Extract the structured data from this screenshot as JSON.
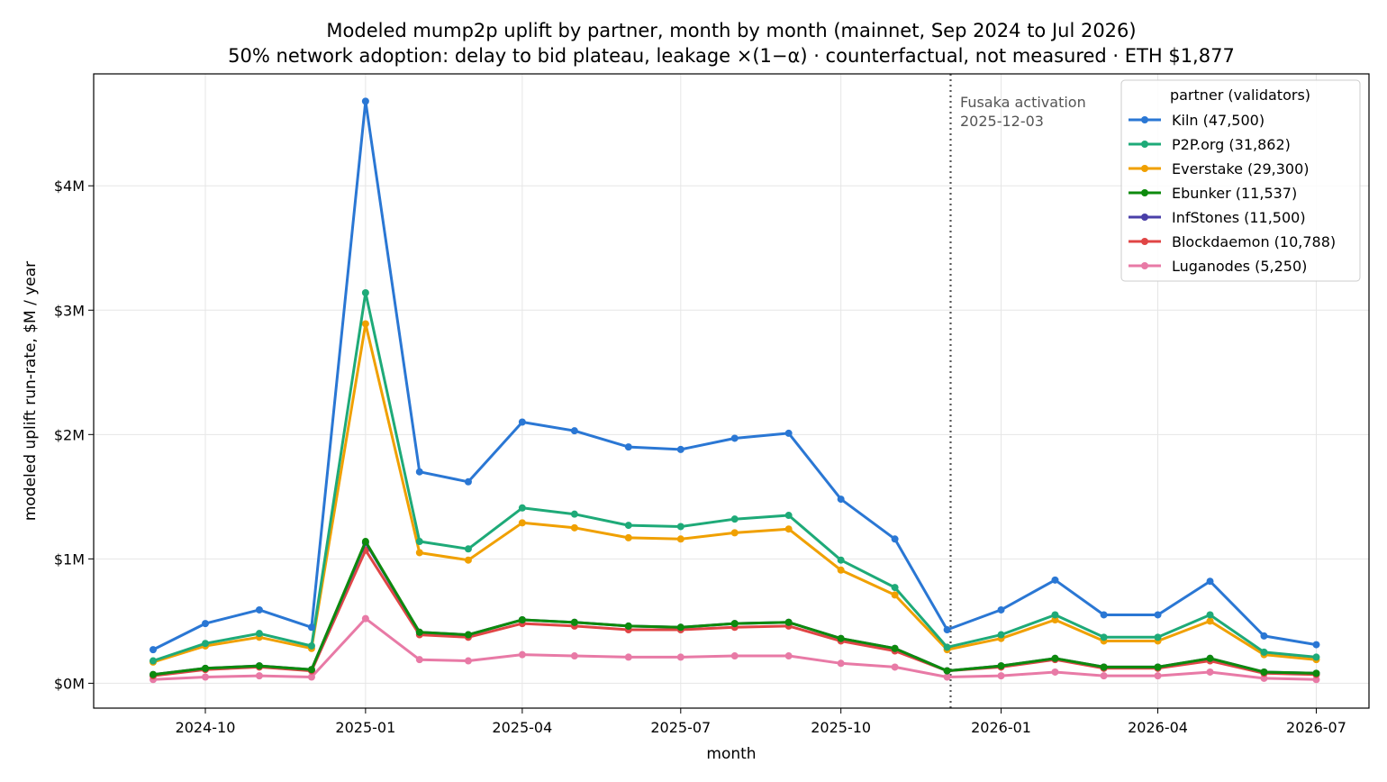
{
  "chart_data": {
    "type": "line",
    "title": "Modeled mump2p uplift by partner, month by month (mainnet, Sep 2024 to Jul 2026)",
    "subtitle": "50% network adoption: delay to bid plateau, leakage ×(1−α) · counterfactual, not measured · ETH $1,877",
    "xlabel": "month",
    "ylabel": "modeled uplift run-rate, $M / year",
    "x": [
      "2024-09",
      "2024-10",
      "2024-11",
      "2024-12",
      "2025-01",
      "2025-02",
      "2025-03",
      "2025-04",
      "2025-05",
      "2025-06",
      "2025-07",
      "2025-08",
      "2025-09",
      "2025-10",
      "2025-11",
      "2025-12",
      "2026-01",
      "2026-02",
      "2026-03",
      "2026-04",
      "2026-05",
      "2026-06",
      "2026-07"
    ],
    "x_ticks": [
      "2024-10",
      "2025-01",
      "2025-04",
      "2025-07",
      "2025-10",
      "2026-01",
      "2026-04",
      "2026-07"
    ],
    "ylim": [
      -0.2,
      4.9
    ],
    "y_ticks": [
      {
        "value": 0,
        "label": "$0M"
      },
      {
        "value": 1,
        "label": "$1M"
      },
      {
        "value": 2,
        "label": "$2M"
      },
      {
        "value": 3,
        "label": "$3M"
      },
      {
        "value": 4,
        "label": "$4M"
      }
    ],
    "grid": true,
    "legend": {
      "title": "partner (validators)",
      "placement": "top-right"
    },
    "annotation": {
      "x": "2025-12-03",
      "lines": [
        "Fusaka activation",
        "2025-12-03"
      ]
    },
    "series": [
      {
        "name": "Kiln (47,500)",
        "color": "#2a77d4",
        "values": [
          0.27,
          0.48,
          0.59,
          0.45,
          4.68,
          1.7,
          1.62,
          2.1,
          2.03,
          1.9,
          1.88,
          1.97,
          2.01,
          1.48,
          1.16,
          0.43,
          0.59,
          0.83,
          0.55,
          0.55,
          0.82,
          0.38,
          0.31
        ]
      },
      {
        "name": "P2P.org (31,862)",
        "color": "#1eaa78",
        "values": [
          0.18,
          0.32,
          0.4,
          0.3,
          3.14,
          1.14,
          1.08,
          1.41,
          1.36,
          1.27,
          1.26,
          1.32,
          1.35,
          0.99,
          0.77,
          0.29,
          0.39,
          0.55,
          0.37,
          0.37,
          0.55,
          0.25,
          0.21
        ]
      },
      {
        "name": "Everstake (29,300)",
        "color": "#f0a000",
        "values": [
          0.17,
          0.3,
          0.37,
          0.28,
          2.89,
          1.05,
          0.99,
          1.29,
          1.25,
          1.17,
          1.16,
          1.21,
          1.24,
          0.91,
          0.71,
          0.27,
          0.36,
          0.51,
          0.34,
          0.34,
          0.5,
          0.23,
          0.19
        ]
      },
      {
        "name": "Ebunker (11,537)",
        "color": "#0d8a0d",
        "values": [
          0.07,
          0.12,
          0.14,
          0.11,
          1.14,
          0.41,
          0.39,
          0.51,
          0.49,
          0.46,
          0.45,
          0.48,
          0.49,
          0.36,
          0.28,
          0.1,
          0.14,
          0.2,
          0.13,
          0.13,
          0.2,
          0.09,
          0.08
        ]
      },
      {
        "name": "InfStones (11,500)",
        "color": "#4a3fa8",
        "values": [
          0.07,
          0.12,
          0.14,
          0.11,
          1.13,
          0.41,
          0.39,
          0.51,
          0.49,
          0.46,
          0.45,
          0.48,
          0.49,
          0.36,
          0.28,
          0.1,
          0.14,
          0.2,
          0.13,
          0.13,
          0.2,
          0.09,
          0.08
        ]
      },
      {
        "name": "Blockdaemon (10,788)",
        "color": "#e04545",
        "values": [
          0.06,
          0.11,
          0.13,
          0.1,
          1.07,
          0.39,
          0.37,
          0.48,
          0.46,
          0.43,
          0.43,
          0.45,
          0.46,
          0.34,
          0.26,
          0.1,
          0.13,
          0.19,
          0.12,
          0.12,
          0.18,
          0.08,
          0.07
        ]
      },
      {
        "name": "Luganodes (5,250)",
        "color": "#e87aa6",
        "values": [
          0.03,
          0.05,
          0.06,
          0.05,
          0.52,
          0.19,
          0.18,
          0.23,
          0.22,
          0.21,
          0.21,
          0.22,
          0.22,
          0.16,
          0.13,
          0.05,
          0.06,
          0.09,
          0.06,
          0.06,
          0.09,
          0.04,
          0.03
        ]
      }
    ]
  }
}
